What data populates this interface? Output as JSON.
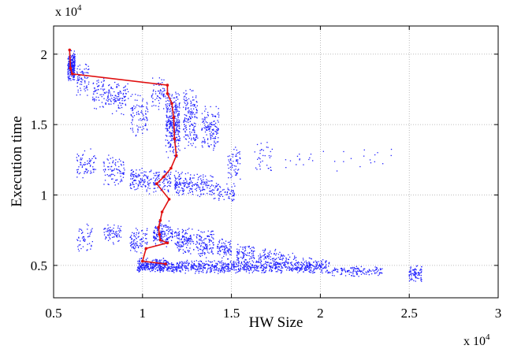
{
  "chart_data": {
    "type": "scatter",
    "title": "",
    "xlabel": "HW Size",
    "ylabel": "Execution time",
    "x_multiplier": {
      "base": "x 10",
      "exp": "4"
    },
    "y_multiplier": {
      "base": "x 10",
      "exp": "4"
    },
    "xlim": [
      5000,
      30000
    ],
    "ylim": [
      2700,
      22000
    ],
    "x_ticks": [
      5000,
      10000,
      15000,
      20000,
      25000,
      30000
    ],
    "x_tick_labels": [
      "0.5",
      "1",
      "1.5",
      "2",
      "2.5",
      "3"
    ],
    "y_ticks": [
      5000,
      10000,
      15000,
      20000
    ],
    "y_tick_labels": [
      "0.5",
      "1",
      "1.5",
      "2"
    ],
    "grid": true,
    "colors": {
      "scatter": "#1f1fff",
      "pareto": "#e01010"
    },
    "scatter_clusters": [
      {
        "x": [
          5800,
          6200
        ],
        "y": [
          18000,
          20300
        ],
        "n": 260
      },
      {
        "x": [
          6300,
          7000
        ],
        "y": [
          17000,
          19500
        ],
        "n": 70
      },
      {
        "x": [
          7200,
          8300
        ],
        "y": [
          16000,
          18500
        ],
        "n": 90
      },
      {
        "x": [
          8300,
          9200
        ],
        "y": [
          15500,
          18300
        ],
        "n": 80
      },
      {
        "x": [
          9300,
          10300
        ],
        "y": [
          14000,
          17500
        ],
        "n": 90
      },
      {
        "x": [
          10500,
          11300
        ],
        "y": [
          16000,
          18500
        ],
        "n": 60
      },
      {
        "x": [
          11300,
          12100
        ],
        "y": [
          12500,
          17500
        ],
        "n": 320
      },
      {
        "x": [
          12300,
          13100
        ],
        "y": [
          13000,
          17800
        ],
        "n": 170
      },
      {
        "x": [
          13300,
          14300
        ],
        "y": [
          13000,
          16500
        ],
        "n": 140
      },
      {
        "x": [
          14800,
          15500
        ],
        "y": [
          11000,
          13500
        ],
        "n": 60
      },
      {
        "x": [
          16300,
          17300
        ],
        "y": [
          11500,
          14000
        ],
        "n": 35
      },
      {
        "x": [
          18000,
          24000
        ],
        "y": [
          11500,
          13500
        ],
        "n": 30
      },
      {
        "x": [
          6300,
          7400
        ],
        "y": [
          11000,
          13500
        ],
        "n": 70
      },
      {
        "x": [
          7800,
          9000
        ],
        "y": [
          10500,
          13000
        ],
        "n": 90
      },
      {
        "x": [
          9300,
          10500
        ],
        "y": [
          10000,
          12000
        ],
        "n": 110
      },
      {
        "x": [
          10600,
          11600
        ],
        "y": [
          10000,
          12000
        ],
        "n": 90
      },
      {
        "x": [
          11800,
          12700
        ],
        "y": [
          9800,
          11800
        ],
        "n": 110
      },
      {
        "x": [
          12700,
          14000
        ],
        "y": [
          9800,
          11500
        ],
        "n": 100
      },
      {
        "x": [
          14000,
          15200
        ],
        "y": [
          9500,
          11000
        ],
        "n": 70
      },
      {
        "x": [
          6300,
          7200
        ],
        "y": [
          5800,
          8000
        ],
        "n": 50
      },
      {
        "x": [
          7800,
          8800
        ],
        "y": [
          6500,
          8000
        ],
        "n": 70
      },
      {
        "x": [
          9300,
          10300
        ],
        "y": [
          5800,
          7800
        ],
        "n": 90
      },
      {
        "x": [
          10600,
          11700
        ],
        "y": [
          6300,
          8200
        ],
        "n": 150
      },
      {
        "x": [
          11800,
          12900
        ],
        "y": [
          5500,
          7800
        ],
        "n": 130
      },
      {
        "x": [
          13000,
          14000
        ],
        "y": [
          5500,
          7600
        ],
        "n": 120
      },
      {
        "x": [
          14200,
          15000
        ],
        "y": [
          5300,
          7000
        ],
        "n": 80
      },
      {
        "x": [
          15300,
          16300
        ],
        "y": [
          5200,
          6500
        ],
        "n": 80
      },
      {
        "x": [
          16500,
          17500
        ],
        "y": [
          5000,
          6300
        ],
        "n": 60
      },
      {
        "x": [
          17500,
          18800
        ],
        "y": [
          4900,
          6000
        ],
        "n": 45
      },
      {
        "x": [
          19000,
          20500
        ],
        "y": [
          4700,
          5600
        ],
        "n": 35
      },
      {
        "x": [
          9700,
          20300
        ],
        "y": [
          4400,
          5400
        ],
        "n": 950
      },
      {
        "x": [
          20300,
          23500
        ],
        "y": [
          4200,
          5000
        ],
        "n": 140
      },
      {
        "x": [
          25000,
          25700
        ],
        "y": [
          3800,
          5000
        ],
        "n": 80
      },
      {
        "x": [
          9800,
          11500
        ],
        "y": [
          4500,
          5600
        ],
        "n": 140
      }
    ],
    "pareto_line": {
      "x": [
        5900,
        5950,
        6050,
        11400,
        11400,
        11650,
        11750,
        11800,
        11900,
        11600,
        11200,
        10800,
        11500,
        11100,
        11000,
        10900,
        10950,
        11000,
        11400,
        10200,
        10000,
        11300
      ],
      "y": [
        20300,
        19000,
        18600,
        17800,
        17200,
        16500,
        15500,
        14000,
        12800,
        11900,
        11300,
        10800,
        9700,
        8800,
        8200,
        7700,
        7200,
        6800,
        6600,
        6200,
        5300,
        5100
      ]
    }
  }
}
